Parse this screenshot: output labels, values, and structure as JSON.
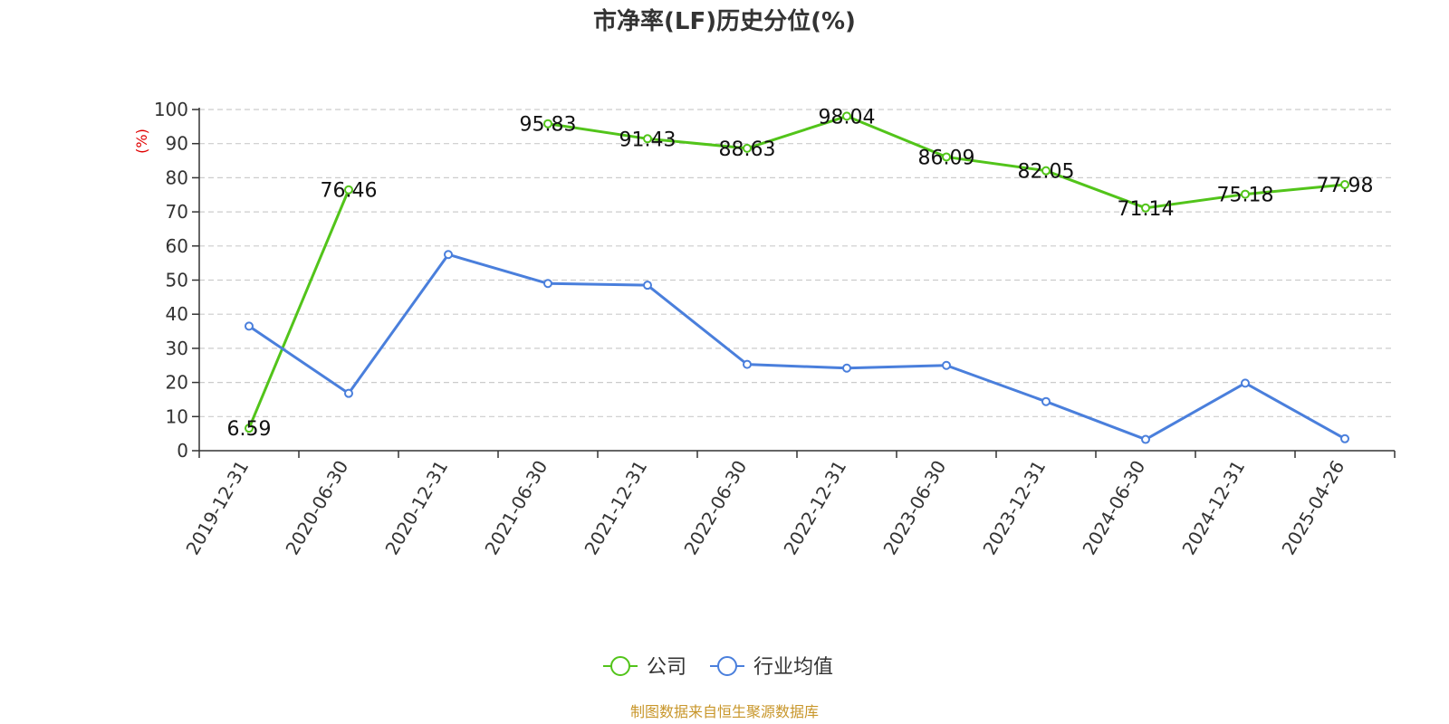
{
  "chart_data": {
    "type": "line",
    "title": "市净率(LF)历史分位(%)",
    "ylabel": "(%)",
    "ylim": [
      0,
      100
    ],
    "yticks": [
      0,
      10,
      20,
      30,
      40,
      50,
      60,
      70,
      80,
      90,
      100
    ],
    "grid": true,
    "legend_position": "bottom",
    "categories": [
      "2019-12-31",
      "2020-06-30",
      "2020-12-31",
      "2021-06-30",
      "2021-12-31",
      "2022-06-30",
      "2022-12-31",
      "2023-06-30",
      "2023-12-31",
      "2024-06-30",
      "2024-12-31",
      "2025-04-26"
    ],
    "series": [
      {
        "name": "公司",
        "color": "#52c41a",
        "values": [
          6.59,
          76.46,
          null,
          95.83,
          91.43,
          88.63,
          98.04,
          86.09,
          82.05,
          71.14,
          75.18,
          77.98
        ],
        "labels": [
          "6.59",
          "76.46",
          "",
          "95.83",
          "91.43",
          "88.63",
          "98.04",
          "86.09",
          "82.05",
          "71.14",
          "75.18",
          "77.98"
        ]
      },
      {
        "name": "行业均值",
        "color": "#4a7fdc",
        "values": [
          36.5,
          16.8,
          57.5,
          49.0,
          48.5,
          25.3,
          24.2,
          25.0,
          14.4,
          3.3,
          19.8,
          3.5
        ]
      }
    ]
  },
  "footer": {
    "source": "制图数据来自恒生聚源数据库",
    "source_color": "#c8962a"
  },
  "colors": {
    "ylabel": "#e00000",
    "axis": "#333333",
    "grid": "#cccccc"
  }
}
